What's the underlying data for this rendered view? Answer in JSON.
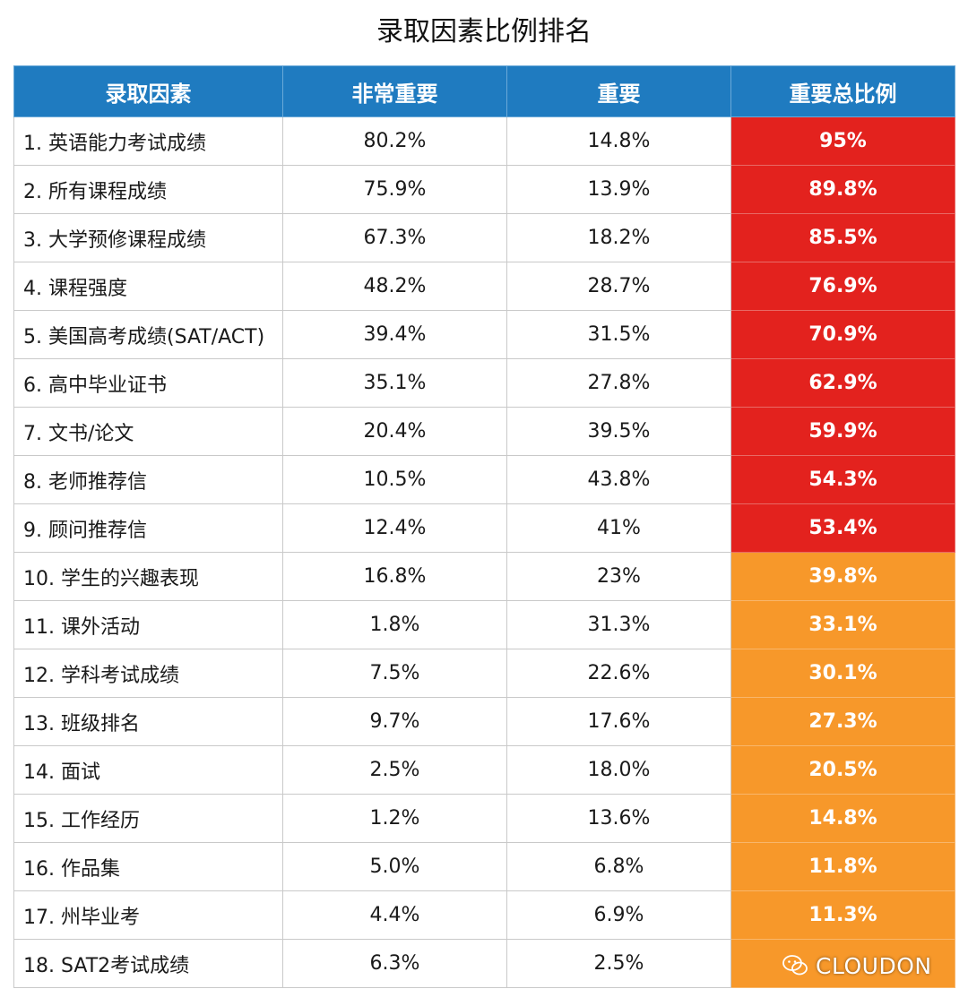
{
  "title": "录取因素比例排名",
  "table": {
    "headers": [
      "录取因素",
      "非常重要",
      "重要",
      "重要总比例"
    ],
    "rows": [
      {
        "factor": "1. 英语能力考试成绩",
        "very": "80.2%",
        "important": "14.8%",
        "total": "95%",
        "level": "high"
      },
      {
        "factor": "2. 所有课程成绩",
        "very": "75.9%",
        "important": "13.9%",
        "total": "89.8%",
        "level": "high"
      },
      {
        "factor": "3. 大学预修课程成绩",
        "very": "67.3%",
        "important": "18.2%",
        "total": "85.5%",
        "level": "high"
      },
      {
        "factor": "4. 课程强度",
        "very": "48.2%",
        "important": "28.7%",
        "total": "76.9%",
        "level": "high"
      },
      {
        "factor": "5. 美国高考成绩(SAT/ACT)",
        "very": "39.4%",
        "important": "31.5%",
        "total": "70.9%",
        "level": "high"
      },
      {
        "factor": "6. 高中毕业证书",
        "very": "35.1%",
        "important": "27.8%",
        "total": "62.9%",
        "level": "high"
      },
      {
        "factor": "7. 文书/论文",
        "very": "20.4%",
        "important": "39.5%",
        "total": "59.9%",
        "level": "high"
      },
      {
        "factor": "8. 老师推荐信",
        "very": "10.5%",
        "important": "43.8%",
        "total": "54.3%",
        "level": "high"
      },
      {
        "factor": "9. 顾问推荐信",
        "very": "12.4%",
        "important": "41%",
        "total": "53.4%",
        "level": "high"
      },
      {
        "factor": "10. 学生的兴趣表现",
        "very": "16.8%",
        "important": "23%",
        "total": "39.8%",
        "level": "mid"
      },
      {
        "factor": "11. 课外活动",
        "very": "1.8%",
        "important": "31.3%",
        "total": "33.1%",
        "level": "mid"
      },
      {
        "factor": "12. 学科考试成绩",
        "very": "7.5%",
        "important": "22.6%",
        "total": "30.1%",
        "level": "mid"
      },
      {
        "factor": "13. 班级排名",
        "very": "9.7%",
        "important": "17.6%",
        "total": "27.3%",
        "level": "mid"
      },
      {
        "factor": "14. 面试",
        "very": "2.5%",
        "important": "18.0%",
        "total": "20.5%",
        "level": "mid"
      },
      {
        "factor": "15. 工作经历",
        "very": "1.2%",
        "important": "13.6%",
        "total": "14.8%",
        "level": "mid"
      },
      {
        "factor": "16. 作品集",
        "very": "5.0%",
        "important": "6.8%",
        "total": "11.8%",
        "level": "mid"
      },
      {
        "factor": "17. 州毕业考",
        "very": "4.4%",
        "important": "6.9%",
        "total": "11.3%",
        "level": "mid"
      },
      {
        "factor": "18. SAT2考试成绩",
        "very": "6.3%",
        "important": "2.5%",
        "total": "",
        "level": "mid"
      }
    ]
  },
  "colors": {
    "header": "#1f7bc0",
    "high": "#e3221e",
    "mid": "#f7982a"
  },
  "watermark": {
    "icon": "wechat-icon",
    "text": "CLOUDON"
  }
}
